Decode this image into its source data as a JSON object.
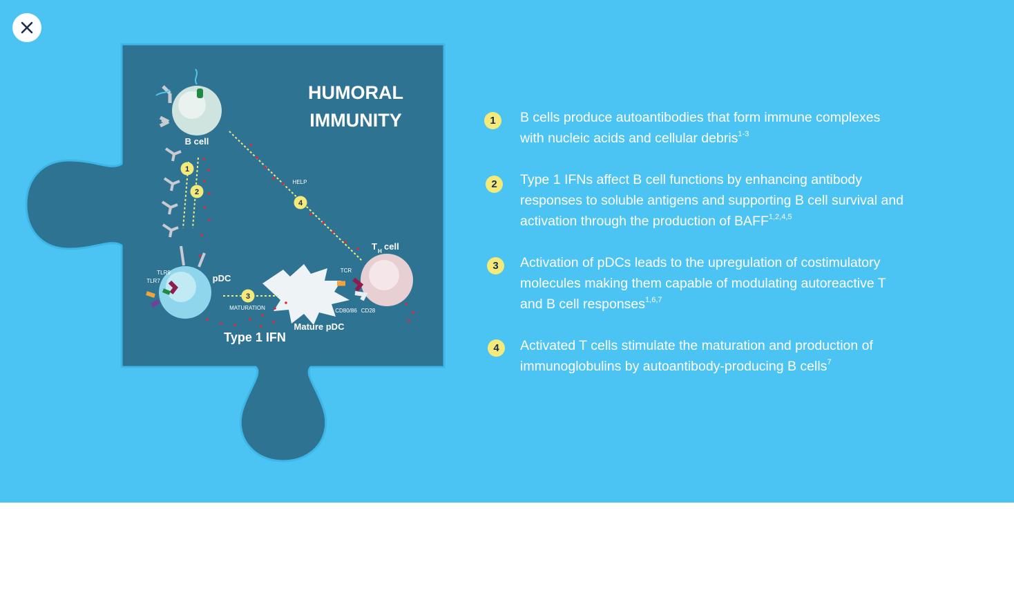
{
  "close": {
    "icon": "close-icon"
  },
  "figure": {
    "title_line1": "HUMORAL",
    "title_line2": "IMMUNITY",
    "labels": {
      "b_cell": "B cell",
      "pdc": "pDC",
      "tlr9": "TLR9",
      "tlr7": "TLR7",
      "maturation": "MATURATION",
      "mature_pdc": "Mature pDC",
      "type1ifn": "Type 1 IFN",
      "help": "HELP",
      "tcr": "TCR",
      "cd8086": "CD80/86",
      "cd28": "CD28",
      "th_T": "T",
      "th_H": "H",
      "th_cell": "cell"
    },
    "badges": [
      "1",
      "2",
      "3",
      "4"
    ]
  },
  "items": [
    {
      "number": "1",
      "text": "B cells produce autoantibodies that form immune complexes with nucleic acids and cellular debris",
      "ref": "1-3"
    },
    {
      "number": "2",
      "text": "Type 1 IFNs affect B cell functions by enhancing antibody responses to soluble antigens and supporting B cell survival and activation through the production of BAFF",
      "ref": "1,2,4,5"
    },
    {
      "number": "3",
      "text": "Activation of pDCs leads to the upregulation of costimulatory molecules making them capable of modulating autoreactive T and B cell responses",
      "ref": "1,6,7"
    },
    {
      "number": "4",
      "text": "Activated T cells stimulate the maturation and production of immunoglobulins by autoantibody-producing B cells",
      "ref": "7"
    }
  ],
  "colors": {
    "background": "#4cc4f3",
    "puzzle_dark": "#2f7393",
    "badge": "#f3ea7a",
    "dots": "#e0263a"
  }
}
